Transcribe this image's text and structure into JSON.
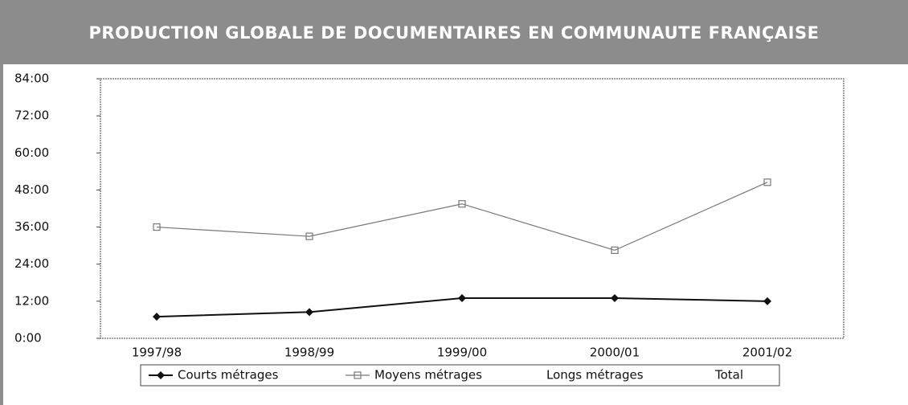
{
  "chart_data": {
    "type": "line",
    "title": "PRODUCTION GLOBALE DE DOCUMENTAIRES EN COMMUNAUTE FRANÇAISE",
    "categories": [
      "1997/98",
      "1998/99",
      "1999/00",
      "2000/01",
      "2001/02"
    ],
    "series": [
      {
        "name": "Courts métrages",
        "color": "#111111",
        "marker": "diamond",
        "values": [
          7,
          8.5,
          13,
          13,
          12
        ]
      },
      {
        "name": "Moyens métrages",
        "color": "#777777",
        "marker": "square",
        "values": [
          36,
          33,
          43.5,
          28.5,
          50.5
        ]
      },
      {
        "name": "Longs métrages",
        "values": [
          null,
          null,
          null,
          null,
          null
        ]
      },
      {
        "name": "Total",
        "values": [
          null,
          null,
          null,
          null,
          null
        ]
      }
    ],
    "ylim": [
      0,
      84
    ],
    "yticks": [
      {
        "value": 0,
        "label": "0:00"
      },
      {
        "value": 12,
        "label": "12:00"
      },
      {
        "value": 24,
        "label": "24:00"
      },
      {
        "value": 36,
        "label": "36:00"
      },
      {
        "value": 48,
        "label": "48:00"
      },
      {
        "value": 60,
        "label": "60:00"
      },
      {
        "value": 72,
        "label": "72:00"
      },
      {
        "value": 84,
        "label": "84:00"
      }
    ]
  }
}
